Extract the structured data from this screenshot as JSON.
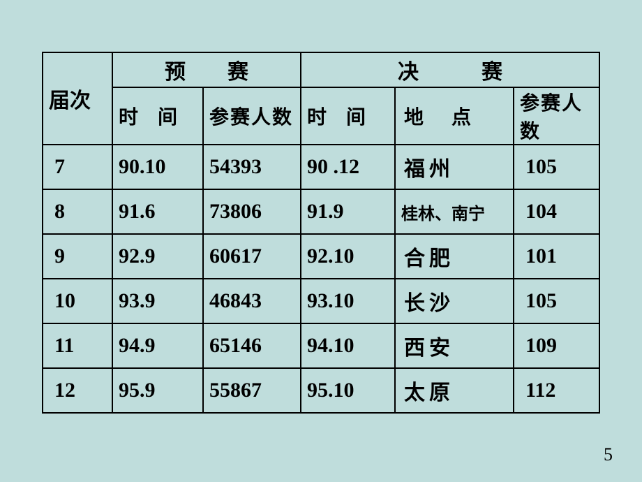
{
  "headers": {
    "session": "届次",
    "prelim": "预　　赛",
    "final": "决　　　赛",
    "time": "时　间",
    "count": "参赛人数",
    "time2": "时　间",
    "loc": "地　点",
    "count2": "参赛人数"
  },
  "rows": [
    {
      "n": "7",
      "pt": "90.10",
      "pc": "54393",
      "ft": "90 .12",
      "loc": "福州",
      "fc": "105",
      "loc_small": false
    },
    {
      "n": "8",
      "pt": "91.6",
      "pc": "73806",
      "ft": "91.9",
      "loc": "桂林、南宁",
      "fc": "104",
      "loc_small": true
    },
    {
      "n": "9",
      "pt": "92.9",
      "pc": "60617",
      "ft": "92.10",
      "loc": "合肥",
      "fc": "101",
      "loc_small": false
    },
    {
      "n": "10",
      "pt": "93.9",
      "pc": "46843",
      "ft": "93.10",
      "loc": "长沙",
      "fc": "105",
      "loc_small": false
    },
    {
      "n": "11",
      "pt": "94.9",
      "pc": "65146",
      "ft": "94.10",
      "loc": "西安",
      "fc": "109",
      "loc_small": false
    },
    {
      "n": "12",
      "pt": "95.9",
      "pc": "55867",
      "ft": "95.10",
      "loc": "太原",
      "fc": "112",
      "loc_small": false
    }
  ],
  "page_number": "5",
  "colors": {
    "background": "#bfdddc",
    "border": "#000000",
    "text": "#000000"
  }
}
